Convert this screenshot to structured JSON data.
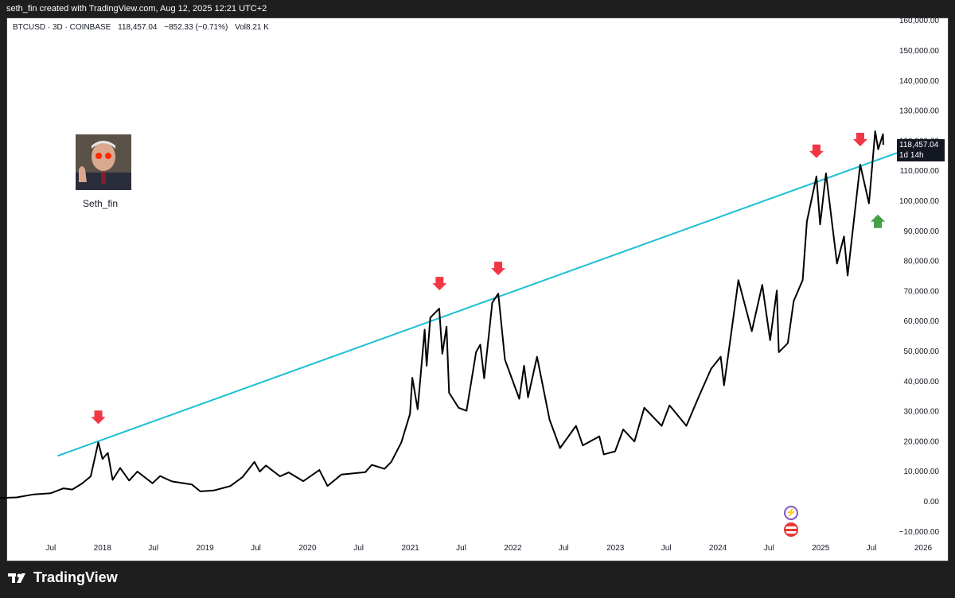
{
  "header": {
    "credit": "seth_fin created with TradingView.com, Aug 12, 2025 12:21 UTC+2"
  },
  "symbol_line": {
    "symbol": "BTCUSD · 3D · COINBASE",
    "price": "118,457.04",
    "change": "−852.33 (−0.71%)",
    "volume": "Vol8.21 K"
  },
  "avatar": {
    "name": "Seth_fin"
  },
  "price_tag": {
    "price": "118,457.04",
    "countdown": "1d 14h"
  },
  "brand": {
    "name": "TradingView"
  },
  "colors": {
    "price_line": "#000000",
    "trendline": "#1cc0d4",
    "down_arrow": "#f23645",
    "up_arrow": "#43a047",
    "background": "#ffffff"
  },
  "chart_data": {
    "type": "line",
    "title": "",
    "xlabel": "",
    "ylabel": "",
    "y_axis_position": "right",
    "ylim": [
      -10000,
      160000
    ],
    "y_ticks": [
      "160,000.00",
      "150,000.00",
      "140,000.00",
      "130,000.00",
      "120,000.00",
      "110,000.00",
      "100,000.00",
      "90,000.00",
      "80,000.00",
      "70,000.00",
      "60,000.00",
      "50,000.00",
      "40,000.00",
      "30,000.00",
      "20,000.00",
      "10,000.00",
      "0.00",
      "−10,000.00"
    ],
    "x_ticks": [
      "Jul",
      "2018",
      "Jul",
      "2019",
      "Jul",
      "2020",
      "Jul",
      "2021",
      "Jul",
      "2022",
      "Jul",
      "2023",
      "Jul",
      "2024",
      "Jul",
      "2025",
      "Jul",
      "2026",
      "Jul"
    ],
    "series": [
      {
        "values": [
          [
            "2017-01-01",
            1000
          ],
          [
            "2017-03-01",
            1200
          ],
          [
            "2017-05-01",
            2200
          ],
          [
            "2017-07-01",
            2600
          ],
          [
            "2017-08-15",
            4200
          ],
          [
            "2017-09-15",
            3800
          ],
          [
            "2017-10-20",
            5800
          ],
          [
            "2017-11-20",
            8200
          ],
          [
            "2017-12-17",
            19500
          ],
          [
            "2018-01-01",
            14000
          ],
          [
            "2018-01-20",
            16000
          ],
          [
            "2018-02-06",
            7000
          ],
          [
            "2018-03-05",
            11000
          ],
          [
            "2018-04-06",
            6800
          ],
          [
            "2018-05-05",
            9800
          ],
          [
            "2018-06-28",
            5900
          ],
          [
            "2018-07-25",
            8300
          ],
          [
            "2018-09-05",
            6500
          ],
          [
            "2018-11-15",
            5500
          ],
          [
            "2018-12-15",
            3200
          ],
          [
            "2019-02-01",
            3500
          ],
          [
            "2019-04-02",
            5000
          ],
          [
            "2019-05-15",
            8000
          ],
          [
            "2019-06-26",
            13000
          ],
          [
            "2019-07-15",
            9800
          ],
          [
            "2019-08-06",
            11800
          ],
          [
            "2019-09-25",
            8200
          ],
          [
            "2019-10-26",
            9500
          ],
          [
            "2019-12-17",
            6600
          ],
          [
            "2020-02-12",
            10300
          ],
          [
            "2020-03-12",
            5000
          ],
          [
            "2020-05-01",
            8800
          ],
          [
            "2020-07-25",
            9600
          ],
          [
            "2020-08-17",
            12000
          ],
          [
            "2020-10-01",
            10700
          ],
          [
            "2020-10-25",
            13000
          ],
          [
            "2020-11-30",
            19500
          ],
          [
            "2020-12-31",
            29000
          ],
          [
            "2021-01-08",
            41000
          ],
          [
            "2021-01-27",
            30500
          ],
          [
            "2021-02-21",
            57000
          ],
          [
            "2021-02-28",
            45000
          ],
          [
            "2021-03-13",
            61000
          ],
          [
            "2021-04-14",
            64000
          ],
          [
            "2021-04-25",
            49000
          ],
          [
            "2021-05-10",
            58000
          ],
          [
            "2021-05-19",
            36000
          ],
          [
            "2021-06-22",
            31000
          ],
          [
            "2021-07-20",
            30000
          ],
          [
            "2021-08-23",
            49500
          ],
          [
            "2021-09-07",
            52000
          ],
          [
            "2021-09-21",
            40800
          ],
          [
            "2021-10-20",
            66000
          ],
          [
            "2021-11-10",
            69000
          ],
          [
            "2021-12-04",
            47000
          ],
          [
            "2022-01-24",
            34000
          ],
          [
            "2022-02-10",
            45000
          ],
          [
            "2022-02-24",
            34500
          ],
          [
            "2022-03-28",
            48000
          ],
          [
            "2022-05-12",
            27000
          ],
          [
            "2022-06-18",
            17600
          ],
          [
            "2022-08-14",
            25000
          ],
          [
            "2022-09-07",
            18500
          ],
          [
            "2022-11-05",
            21500
          ],
          [
            "2022-11-21",
            15500
          ],
          [
            "2022-12-31",
            16500
          ],
          [
            "2023-01-29",
            23800
          ],
          [
            "2023-03-10",
            19800
          ],
          [
            "2023-04-14",
            31000
          ],
          [
            "2023-06-15",
            25000
          ],
          [
            "2023-07-13",
            31800
          ],
          [
            "2023-09-11",
            25000
          ],
          [
            "2023-10-24",
            34500
          ],
          [
            "2023-12-08",
            44000
          ],
          [
            "2024-01-11",
            48000
          ],
          [
            "2024-01-23",
            38500
          ],
          [
            "2024-02-28",
            63000
          ],
          [
            "2024-03-14",
            73500
          ],
          [
            "2024-05-01",
            56500
          ],
          [
            "2024-06-07",
            71900
          ],
          [
            "2024-07-05",
            53500
          ],
          [
            "2024-07-29",
            70000
          ],
          [
            "2024-08-05",
            49500
          ],
          [
            "2024-09-06",
            52500
          ],
          [
            "2024-09-27",
            66500
          ],
          [
            "2024-10-29",
            73500
          ],
          [
            "2024-11-13",
            93000
          ],
          [
            "2024-12-17",
            108000
          ],
          [
            "2024-12-30",
            92000
          ],
          [
            "2025-01-20",
            109000
          ],
          [
            "2025-02-28",
            79000
          ],
          [
            "2025-03-25",
            88000
          ],
          [
            "2025-04-07",
            75000
          ],
          [
            "2025-05-22",
            111900
          ],
          [
            "2025-06-22",
            99000
          ],
          [
            "2025-07-14",
            123000
          ],
          [
            "2025-07-25",
            117000
          ],
          [
            "2025-08-11",
            122000
          ],
          [
            "2025-08-12",
            118457
          ]
        ]
      }
    ],
    "trendline": {
      "start": [
        "2017-07-25",
        15000
      ],
      "end": [
        "2026-02-01",
        120000
      ]
    },
    "annotations": {
      "down_arrows": [
        "2017-12-17",
        "2021-04-15",
        "2021-11-10",
        "2024-12-17",
        "2025-05-22"
      ],
      "up_arrows": [
        "2025-07-01"
      ]
    }
  }
}
